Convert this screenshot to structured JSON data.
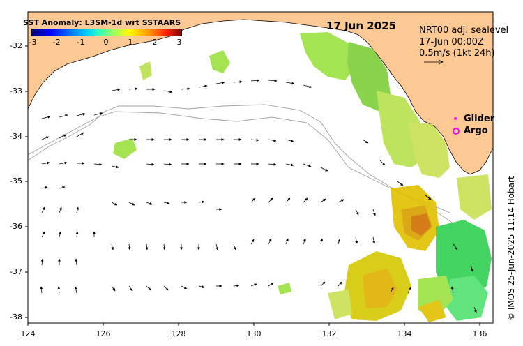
{
  "title": "SST Anomaly: L3SM-1d wrt SSTAARS",
  "date": "17 Jun 2025",
  "legend": {
    "product": "NRT00 adj. sealevel",
    "time": "17-Jun 00:00Z",
    "scale": "0.5m/s (1kt 24h)"
  },
  "markers": {
    "glider": "Glider",
    "argo": "Argo"
  },
  "credit": "© IMOS 25-Jun-2025 11:14 Hobart",
  "colorbar": {
    "ticks": [
      "-3",
      "-2",
      "-1",
      "0",
      "1",
      "2",
      "3"
    ],
    "min": -3,
    "max": 3
  },
  "axes": {
    "lat_labels": [
      "-32",
      "-33",
      "-34",
      "-35",
      "-36",
      "-37",
      "-38"
    ],
    "lon_labels": [
      "124",
      "126",
      "128",
      "130",
      "132",
      "134",
      "136"
    ]
  },
  "colors": {
    "land": "#fcc894",
    "ocean": "#ffffff",
    "marker": "#ff00ff"
  }
}
